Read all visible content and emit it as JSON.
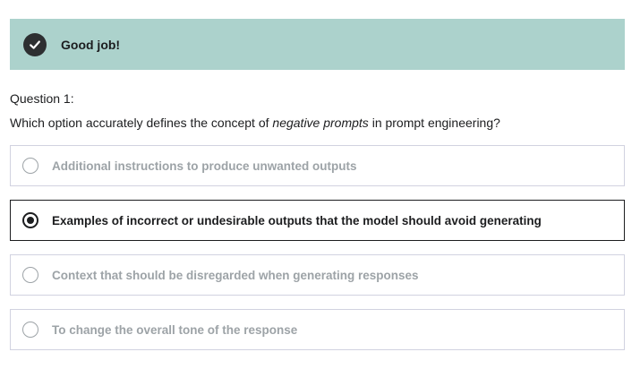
{
  "feedback": {
    "title": "Good job!",
    "icon": "check-circle-icon"
  },
  "question": {
    "label": "Question 1:",
    "text_before": "Which option accurately defines the concept of ",
    "text_emphasis": "negative prompts",
    "text_after": " in prompt engineering?"
  },
  "options": [
    {
      "label": "Additional instructions to produce unwanted outputs",
      "selected": false
    },
    {
      "label": "Examples of incorrect or undesirable outputs that the model should avoid generating",
      "selected": true
    },
    {
      "label": "Context that should be disregarded when generating responses",
      "selected": false
    },
    {
      "label": "To change the overall tone of the response",
      "selected": false
    }
  ],
  "colors": {
    "banner_bg": "#acd2cc",
    "text": "#1c1d1f",
    "muted": "#9da3a7",
    "border": "#d1d2e0"
  }
}
